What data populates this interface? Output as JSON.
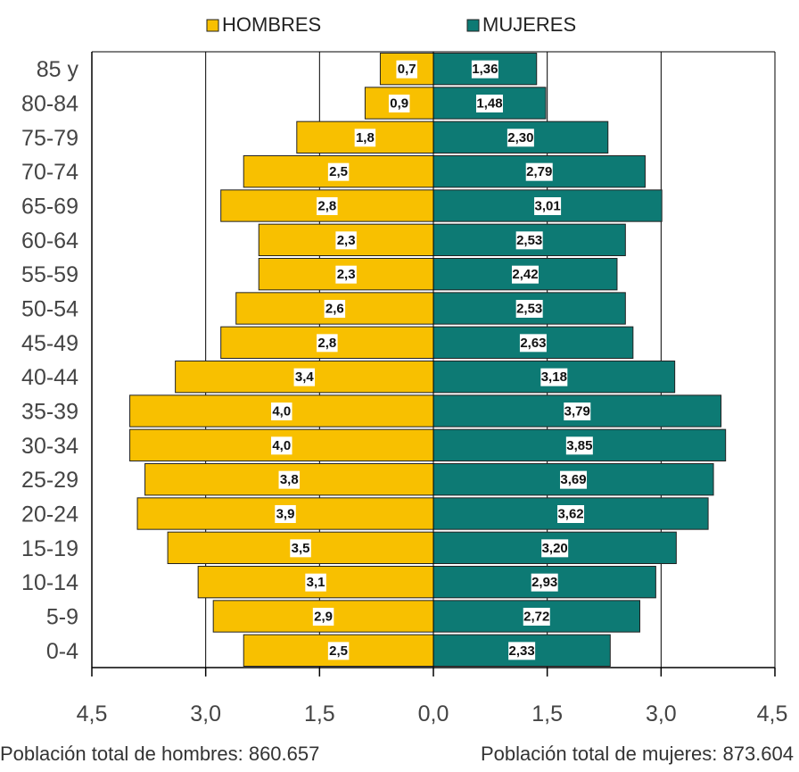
{
  "chart_data": {
    "type": "bar",
    "orientation": "horizontal",
    "subtype": "population-pyramid",
    "title": "",
    "categories": [
      "85 y",
      "80-84",
      "75-79",
      "70-74",
      "65-69",
      "60-64",
      "55-59",
      "50-54",
      "45-49",
      "40-44",
      "35-39",
      "30-34",
      "25-29",
      "20-24",
      "15-19",
      "10-14",
      "5-9",
      "0-4"
    ],
    "series": [
      {
        "name": "HOMBRES",
        "color": "#f8c000",
        "side": "left",
        "values": [
          0.7,
          0.9,
          1.8,
          2.5,
          2.8,
          2.3,
          2.3,
          2.6,
          2.8,
          3.4,
          4.0,
          4.0,
          3.8,
          3.9,
          3.5,
          3.1,
          2.9,
          2.5
        ],
        "labels": [
          "0,7",
          "0,9",
          "1,8",
          "2,5",
          "2,8",
          "2,3",
          "2,3",
          "2,6",
          "2,8",
          "3,4",
          "4,0",
          "4,0",
          "3,8",
          "3,9",
          "3,5",
          "3,1",
          "2,9",
          "2,5"
        ]
      },
      {
        "name": "MUJERES",
        "color": "#0d7a74",
        "side": "right",
        "values": [
          1.36,
          1.48,
          2.3,
          2.79,
          3.01,
          2.53,
          2.42,
          2.53,
          2.63,
          3.18,
          3.79,
          3.85,
          3.69,
          3.62,
          3.2,
          2.93,
          2.72,
          2.33
        ],
        "labels": [
          "1,36",
          "1,48",
          "2,30",
          "2,79",
          "3,01",
          "2,53",
          "2,42",
          "2,53",
          "2,63",
          "3,18",
          "3,79",
          "3,85",
          "3,69",
          "3,62",
          "3,20",
          "2,93",
          "2,72",
          "2,33"
        ]
      }
    ],
    "x_ticks": [
      "4,5",
      "3,0",
      "1,5",
      "0,0",
      "1,5",
      "3,0",
      "4,5"
    ],
    "xlim": [
      -4.5,
      4.5
    ],
    "grid": true,
    "legend": "top-center"
  },
  "footer": {
    "left": "Población total de hombres: 860.657",
    "right": "Población total de mujeres: 873.604"
  }
}
